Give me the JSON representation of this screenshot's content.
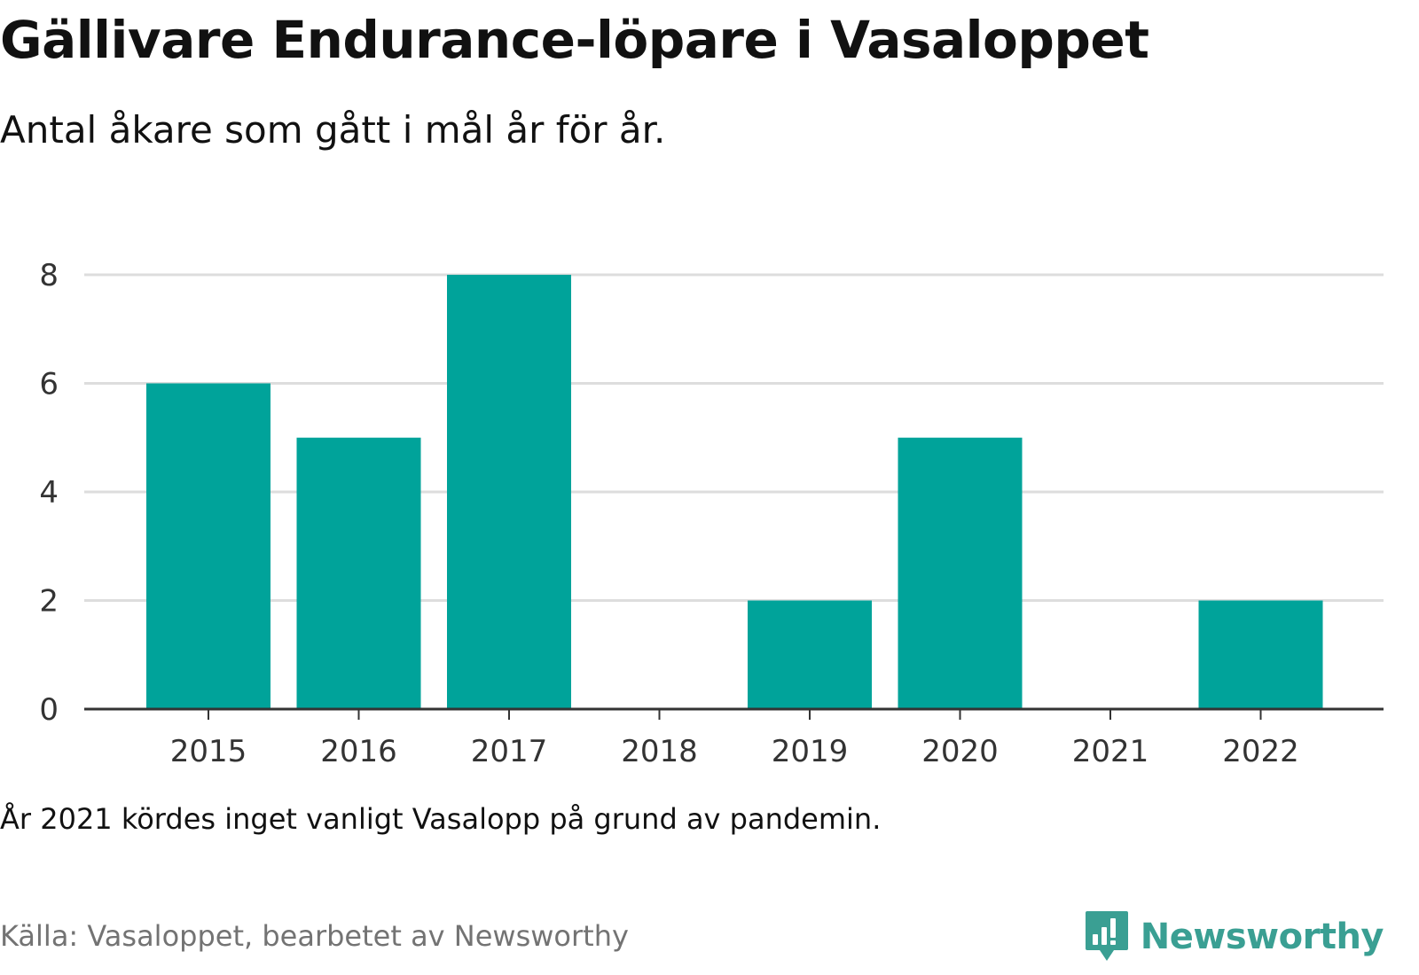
{
  "header": {
    "title": "Gällivare Endurance-löpare i Vasaloppet",
    "subtitle": "Antal åkare som gått i mål år för år."
  },
  "footer": {
    "note": "År 2021 kördes inget vanligt Vasalopp på grund av pandemin.",
    "source": "Källa: Vasaloppet, bearbetet av Newsworthy",
    "brand": "Newsworthy"
  },
  "colors": {
    "bar": "#00a39a",
    "grid": "#dddddd",
    "axis": "#333333",
    "brand": "#3a9f93"
  },
  "icons": {
    "brand_logo": "newsworthy-logo-icon"
  },
  "chart_data": {
    "type": "bar",
    "title": "Gällivare Endurance-löpare i Vasaloppet",
    "subtitle": "Antal åkare som gått i mål år för år.",
    "xlabel": "",
    "ylabel": "",
    "categories": [
      "2015",
      "2016",
      "2017",
      "2018",
      "2019",
      "2020",
      "2021",
      "2022"
    ],
    "values": [
      6,
      5,
      8,
      0,
      2,
      5,
      0,
      2
    ],
    "ylim": [
      0,
      8
    ],
    "yticks": [
      "0",
      "2",
      "4",
      "6",
      "8"
    ],
    "grid": true,
    "legend": "none"
  }
}
